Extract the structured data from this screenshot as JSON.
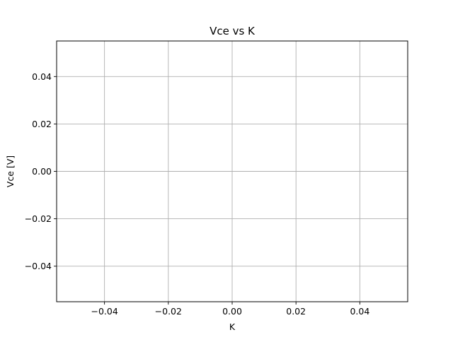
{
  "chart_data": {
    "type": "line",
    "title": "Vce vs K",
    "xlabel": "K",
    "ylabel": "Vce [V]",
    "xlim": [
      -0.055,
      0.055
    ],
    "ylim": [
      -0.055,
      0.055
    ],
    "xticks": [
      -0.04,
      -0.02,
      0.0,
      0.02,
      0.04
    ],
    "yticks": [
      -0.04,
      -0.02,
      0.0,
      0.02,
      0.04
    ],
    "xtick_labels": [
      "−0.04",
      "−0.02",
      "0.00",
      "0.02",
      "0.04"
    ],
    "ytick_labels": [
      "−0.04",
      "−0.02",
      "0.00",
      "0.02",
      "0.04"
    ],
    "grid": true,
    "series": [
      {
        "x": [],
        "y": []
      }
    ],
    "colors": {
      "grid": "#b0b0b0",
      "axes": "#000000",
      "background": "#ffffff"
    }
  }
}
